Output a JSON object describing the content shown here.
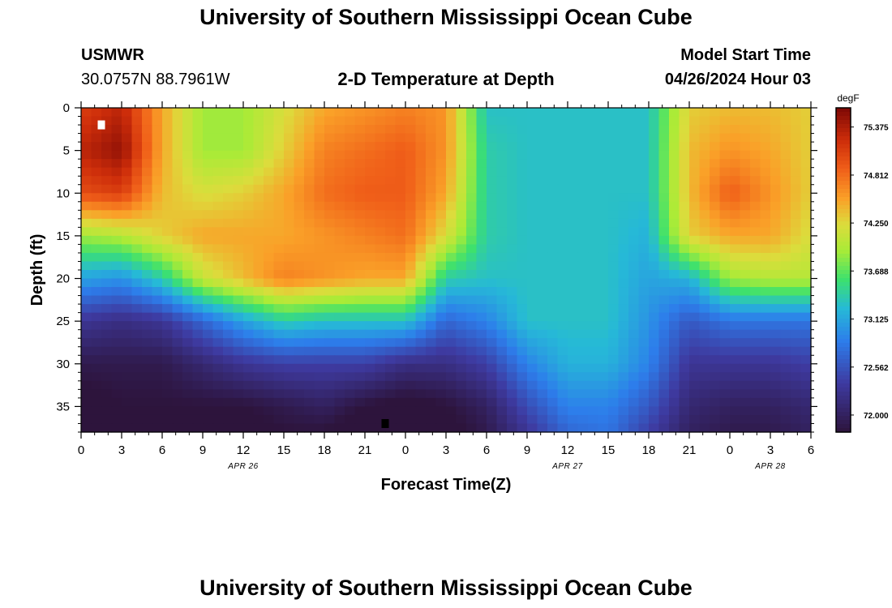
{
  "header": {
    "title_top": "University of Southern Mississippi Ocean Cube",
    "title_bottom": "University of Southern Mississippi Ocean Cube",
    "station_id": "USMWR",
    "station_coords": "30.0757N  88.7961W",
    "plot_title": "2-D Temperature at Depth",
    "model_start_label": "Model Start Time",
    "model_start_value": "04/26/2024 Hour 03"
  },
  "chart_data": {
    "type": "heatmap",
    "title": "2-D Temperature at Depth",
    "xlabel": "Forecast Time(Z)",
    "ylabel": "Depth (ft)",
    "x_hours": [
      0,
      54
    ],
    "y_depth_ft": [
      0,
      38
    ],
    "x_ticks": [
      "0",
      "3",
      "6",
      "9",
      "12",
      "15",
      "18",
      "21",
      "0",
      "3",
      "6",
      "9",
      "12",
      "15",
      "18",
      "21",
      "0",
      "3",
      "6"
    ],
    "y_ticks": [
      "0",
      "5",
      "10",
      "15",
      "20",
      "25",
      "30",
      "35"
    ],
    "y_tick_values": [
      0,
      5,
      10,
      15,
      20,
      25,
      30,
      35
    ],
    "date_labels": [
      {
        "text": "APR 26",
        "hour": 12
      },
      {
        "text": "APR 27",
        "hour": 36
      },
      {
        "text": "APR 28",
        "hour": 51
      }
    ],
    "colorbar": {
      "unit": "degF",
      "min": 71.8,
      "max": 75.6,
      "tick_labels": [
        "75.375",
        "74.812",
        "74.250",
        "73.688",
        "73.125",
        "72.562",
        "72.000"
      ],
      "tick_values": [
        75.375,
        74.812,
        74.25,
        73.688,
        73.125,
        72.562,
        72.0
      ]
    },
    "markers": [
      {
        "label": "max",
        "hour": 1.5,
        "depth_ft": 2,
        "color": "#ffffff"
      },
      {
        "label": "min",
        "hour": 22.5,
        "depth_ft": 37,
        "color": "#000000"
      }
    ],
    "temperature_field_degF": {
      "hours": [
        0,
        3,
        6,
        9,
        12,
        15,
        18,
        21,
        24,
        27,
        30,
        33,
        36,
        39,
        42,
        45,
        48,
        51,
        54
      ],
      "depths_ft": [
        0,
        5,
        10,
        15,
        20,
        25,
        30,
        35,
        38
      ],
      "rows": [
        [
          75.1,
          75.3,
          74.5,
          73.9,
          73.9,
          74.2,
          74.5,
          74.6,
          74.7,
          74.6,
          73.3,
          73.3,
          73.3,
          73.3,
          73.3,
          74.3,
          74.4,
          74.4,
          74.3
        ],
        [
          75.3,
          75.5,
          74.5,
          73.9,
          73.9,
          74.3,
          74.7,
          74.8,
          74.9,
          74.6,
          73.4,
          73.3,
          73.3,
          73.3,
          73.3,
          74.4,
          74.6,
          74.5,
          74.3
        ],
        [
          75.0,
          75.1,
          74.4,
          74.2,
          74.3,
          74.5,
          74.8,
          74.9,
          74.9,
          74.5,
          73.4,
          73.3,
          73.3,
          73.3,
          73.3,
          74.4,
          74.9,
          74.6,
          74.3
        ],
        [
          73.9,
          74.0,
          74.3,
          74.5,
          74.5,
          74.5,
          74.6,
          74.7,
          74.8,
          74.2,
          73.4,
          73.3,
          73.3,
          73.3,
          73.2,
          74.3,
          74.5,
          74.5,
          74.2
        ],
        [
          73.1,
          73.0,
          73.4,
          74.1,
          74.4,
          74.7,
          74.6,
          74.5,
          74.5,
          73.4,
          73.3,
          73.3,
          73.3,
          73.3,
          73.1,
          73.2,
          73.9,
          74.0,
          74.0
        ],
        [
          72.3,
          72.2,
          72.3,
          72.7,
          73.1,
          73.4,
          73.3,
          73.3,
          73.3,
          72.7,
          72.9,
          73.3,
          73.3,
          73.3,
          73.0,
          72.6,
          72.8,
          72.8,
          72.8
        ],
        [
          71.9,
          71.9,
          71.9,
          72.1,
          72.3,
          72.4,
          72.4,
          72.4,
          72.2,
          72.2,
          72.4,
          72.9,
          73.2,
          73.2,
          72.9,
          72.3,
          72.3,
          72.3,
          72.4
        ],
        [
          71.7,
          71.8,
          71.8,
          71.8,
          71.8,
          71.9,
          72.0,
          71.8,
          71.7,
          71.8,
          72.0,
          72.5,
          72.9,
          72.9,
          72.6,
          72.1,
          72.0,
          72.0,
          72.1
        ],
        [
          71.7,
          71.7,
          71.8,
          71.7,
          71.7,
          71.8,
          71.8,
          71.6,
          71.6,
          71.7,
          71.9,
          72.3,
          72.7,
          72.8,
          72.4,
          72.0,
          71.9,
          71.9,
          72.0
        ]
      ]
    }
  }
}
